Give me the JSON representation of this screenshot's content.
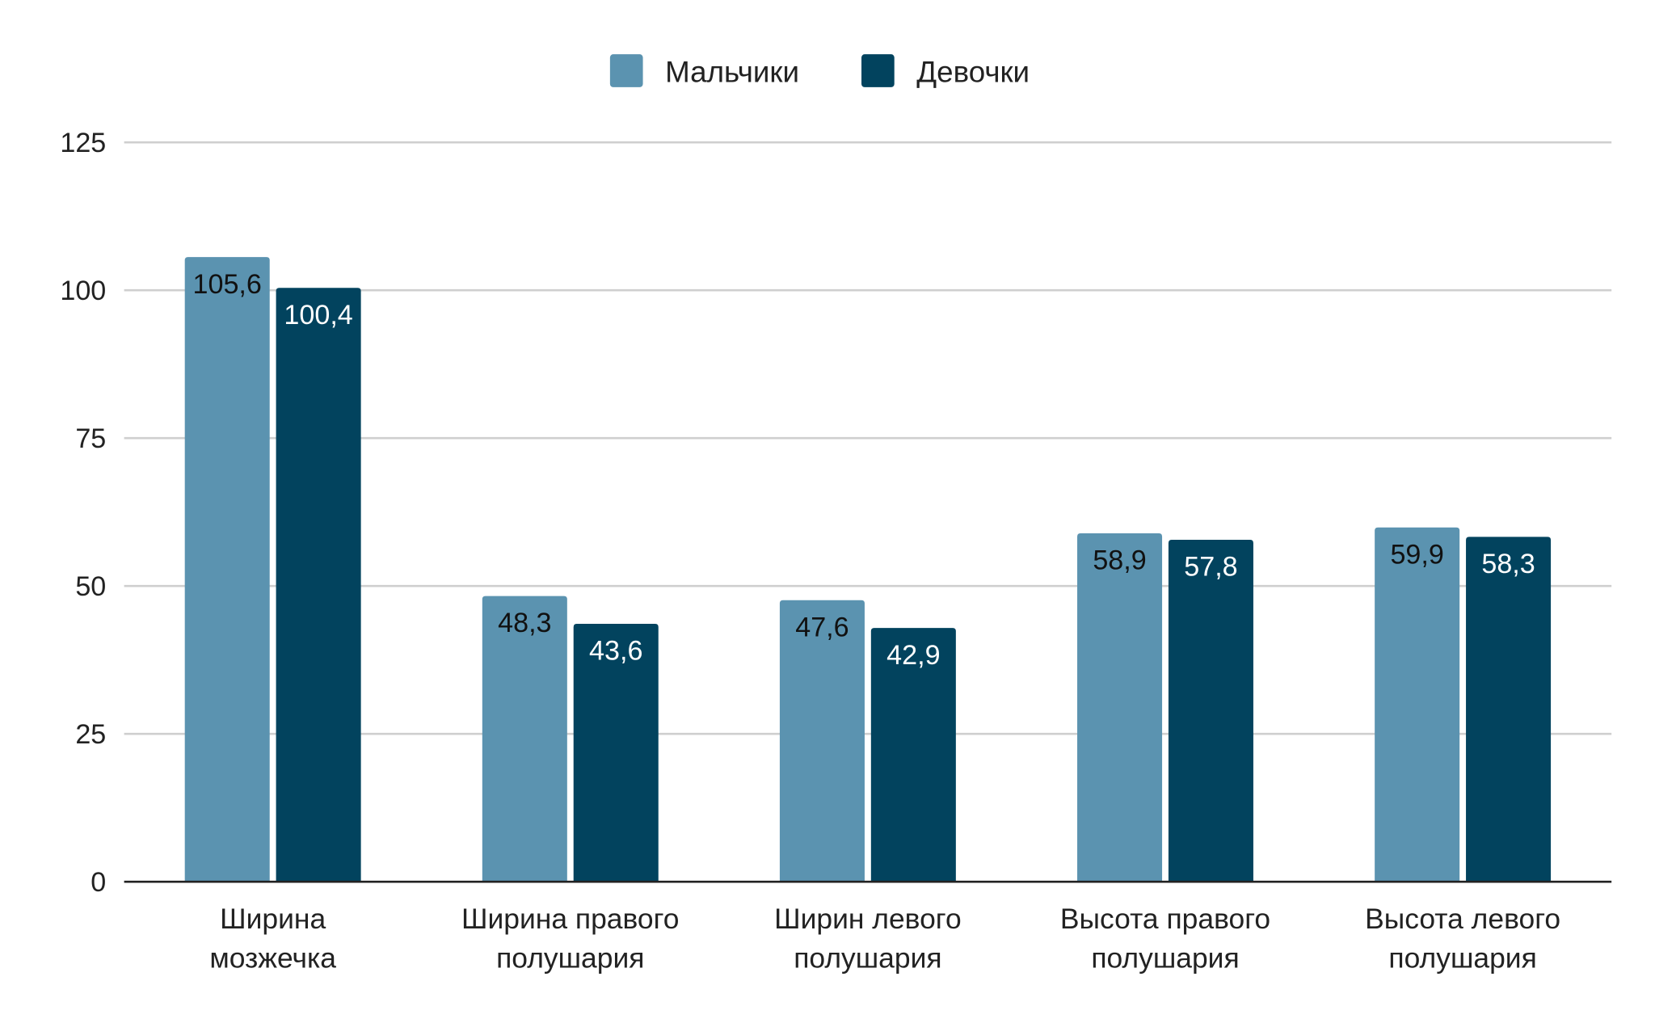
{
  "chart_data": {
    "type": "bar",
    "categories": [
      [
        "Ширина",
        "мозжечка"
      ],
      [
        "Ширина правого",
        "полушария"
      ],
      [
        "Ширин левого",
        "полушария"
      ],
      [
        "Высота правого",
        "полушария"
      ],
      [
        "Высота левого",
        "полушария"
      ]
    ],
    "series": [
      {
        "name": "Мальчики",
        "color": "#5b93b0",
        "label_color": "#111111",
        "values": [
          105.6,
          48.3,
          47.6,
          58.9,
          59.9
        ],
        "labels": [
          "105,6",
          "48,3",
          "47,6",
          "58,9",
          "59,9"
        ]
      },
      {
        "name": "Девочки",
        "color": "#02435e",
        "label_color": "#ffffff",
        "values": [
          100.4,
          43.6,
          42.9,
          57.8,
          58.3
        ],
        "labels": [
          "100,4",
          "43,6",
          "42,9",
          "57,8",
          "58,3"
        ]
      }
    ],
    "yticks": [
      "0",
      "25",
      "50",
      "75",
      "100",
      "125"
    ],
    "ylim": [
      0,
      125
    ],
    "grid": true,
    "legend": "top-center"
  }
}
